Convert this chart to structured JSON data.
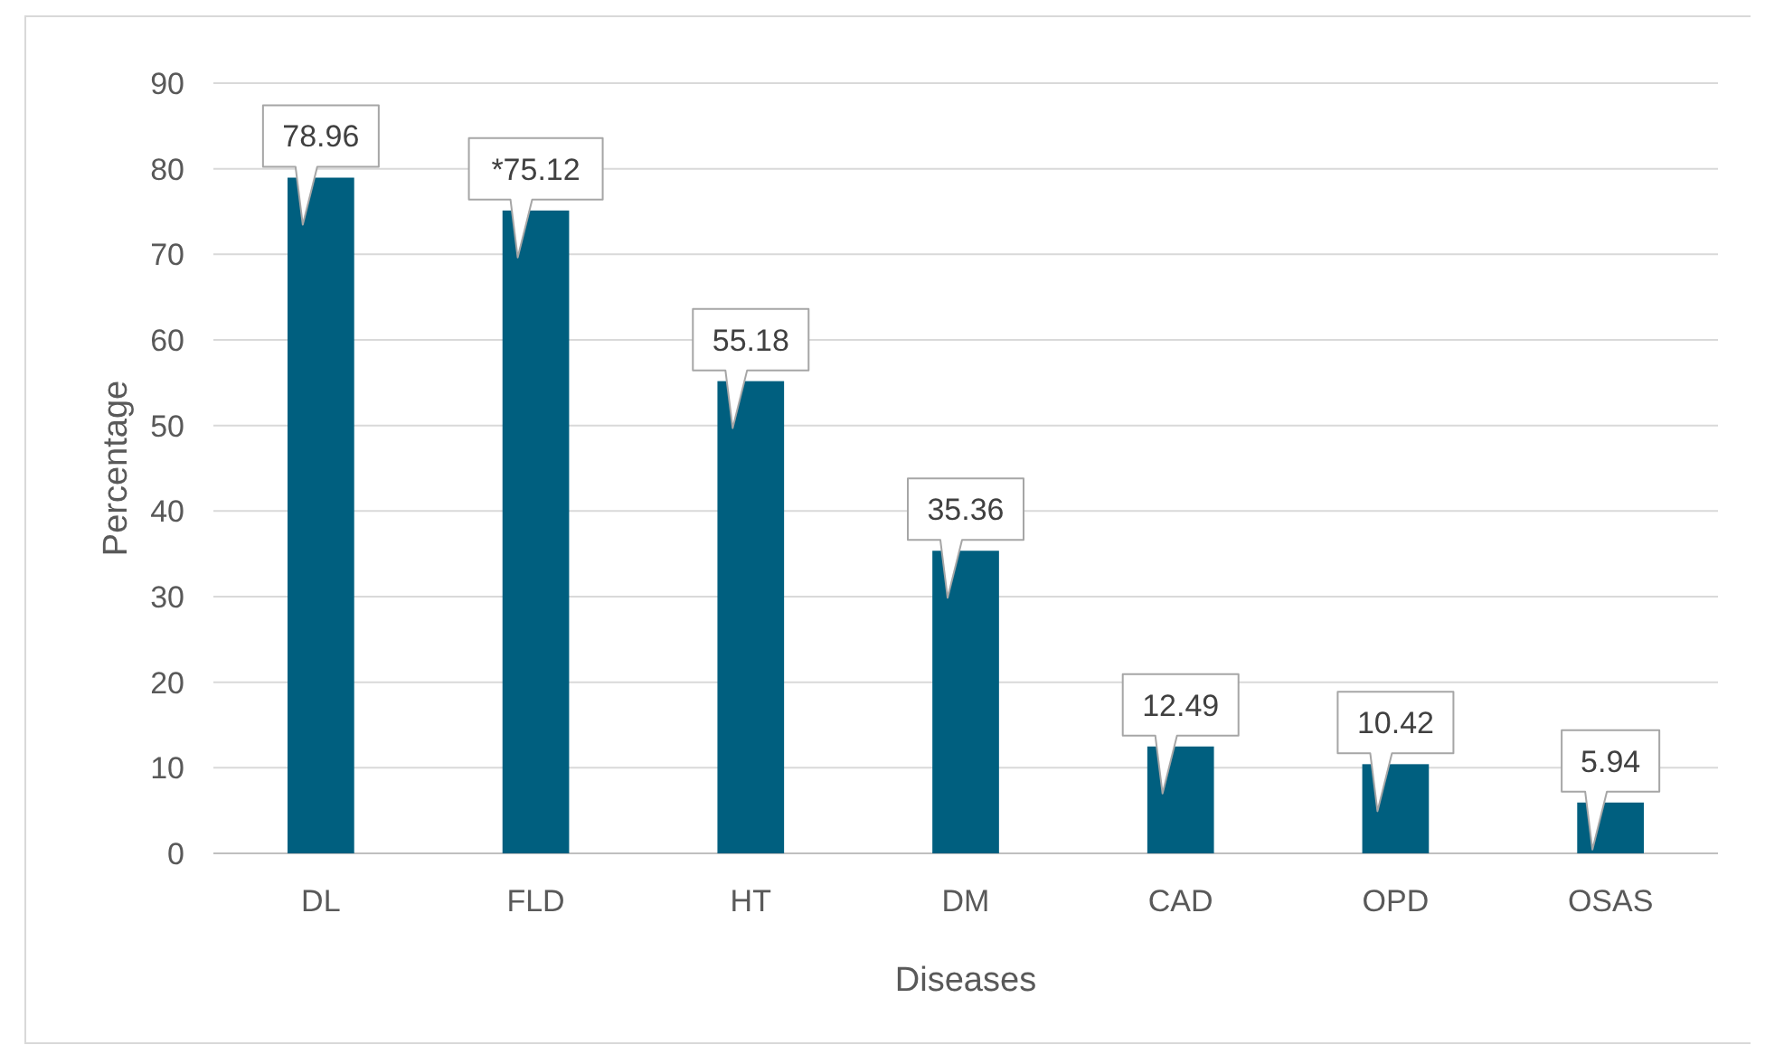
{
  "chart_data": {
    "type": "bar",
    "xlabel": "Diseases",
    "ylabel": "Percentage",
    "categories": [
      "DL",
      "FLD",
      "HT",
      "DM",
      "CAD",
      "OPD",
      "OSAS"
    ],
    "values": [
      78.96,
      75.12,
      55.18,
      35.36,
      12.49,
      10.42,
      5.94
    ],
    "value_labels": [
      "78.96",
      "*75.12",
      "55.18",
      "35.36",
      "12.49",
      "10.42",
      "5.94"
    ],
    "color": "#005f7f",
    "ylim": [
      0,
      90
    ],
    "yticks": [
      0,
      10,
      20,
      30,
      40,
      50,
      60,
      70,
      80,
      90
    ],
    "grid": "y"
  }
}
